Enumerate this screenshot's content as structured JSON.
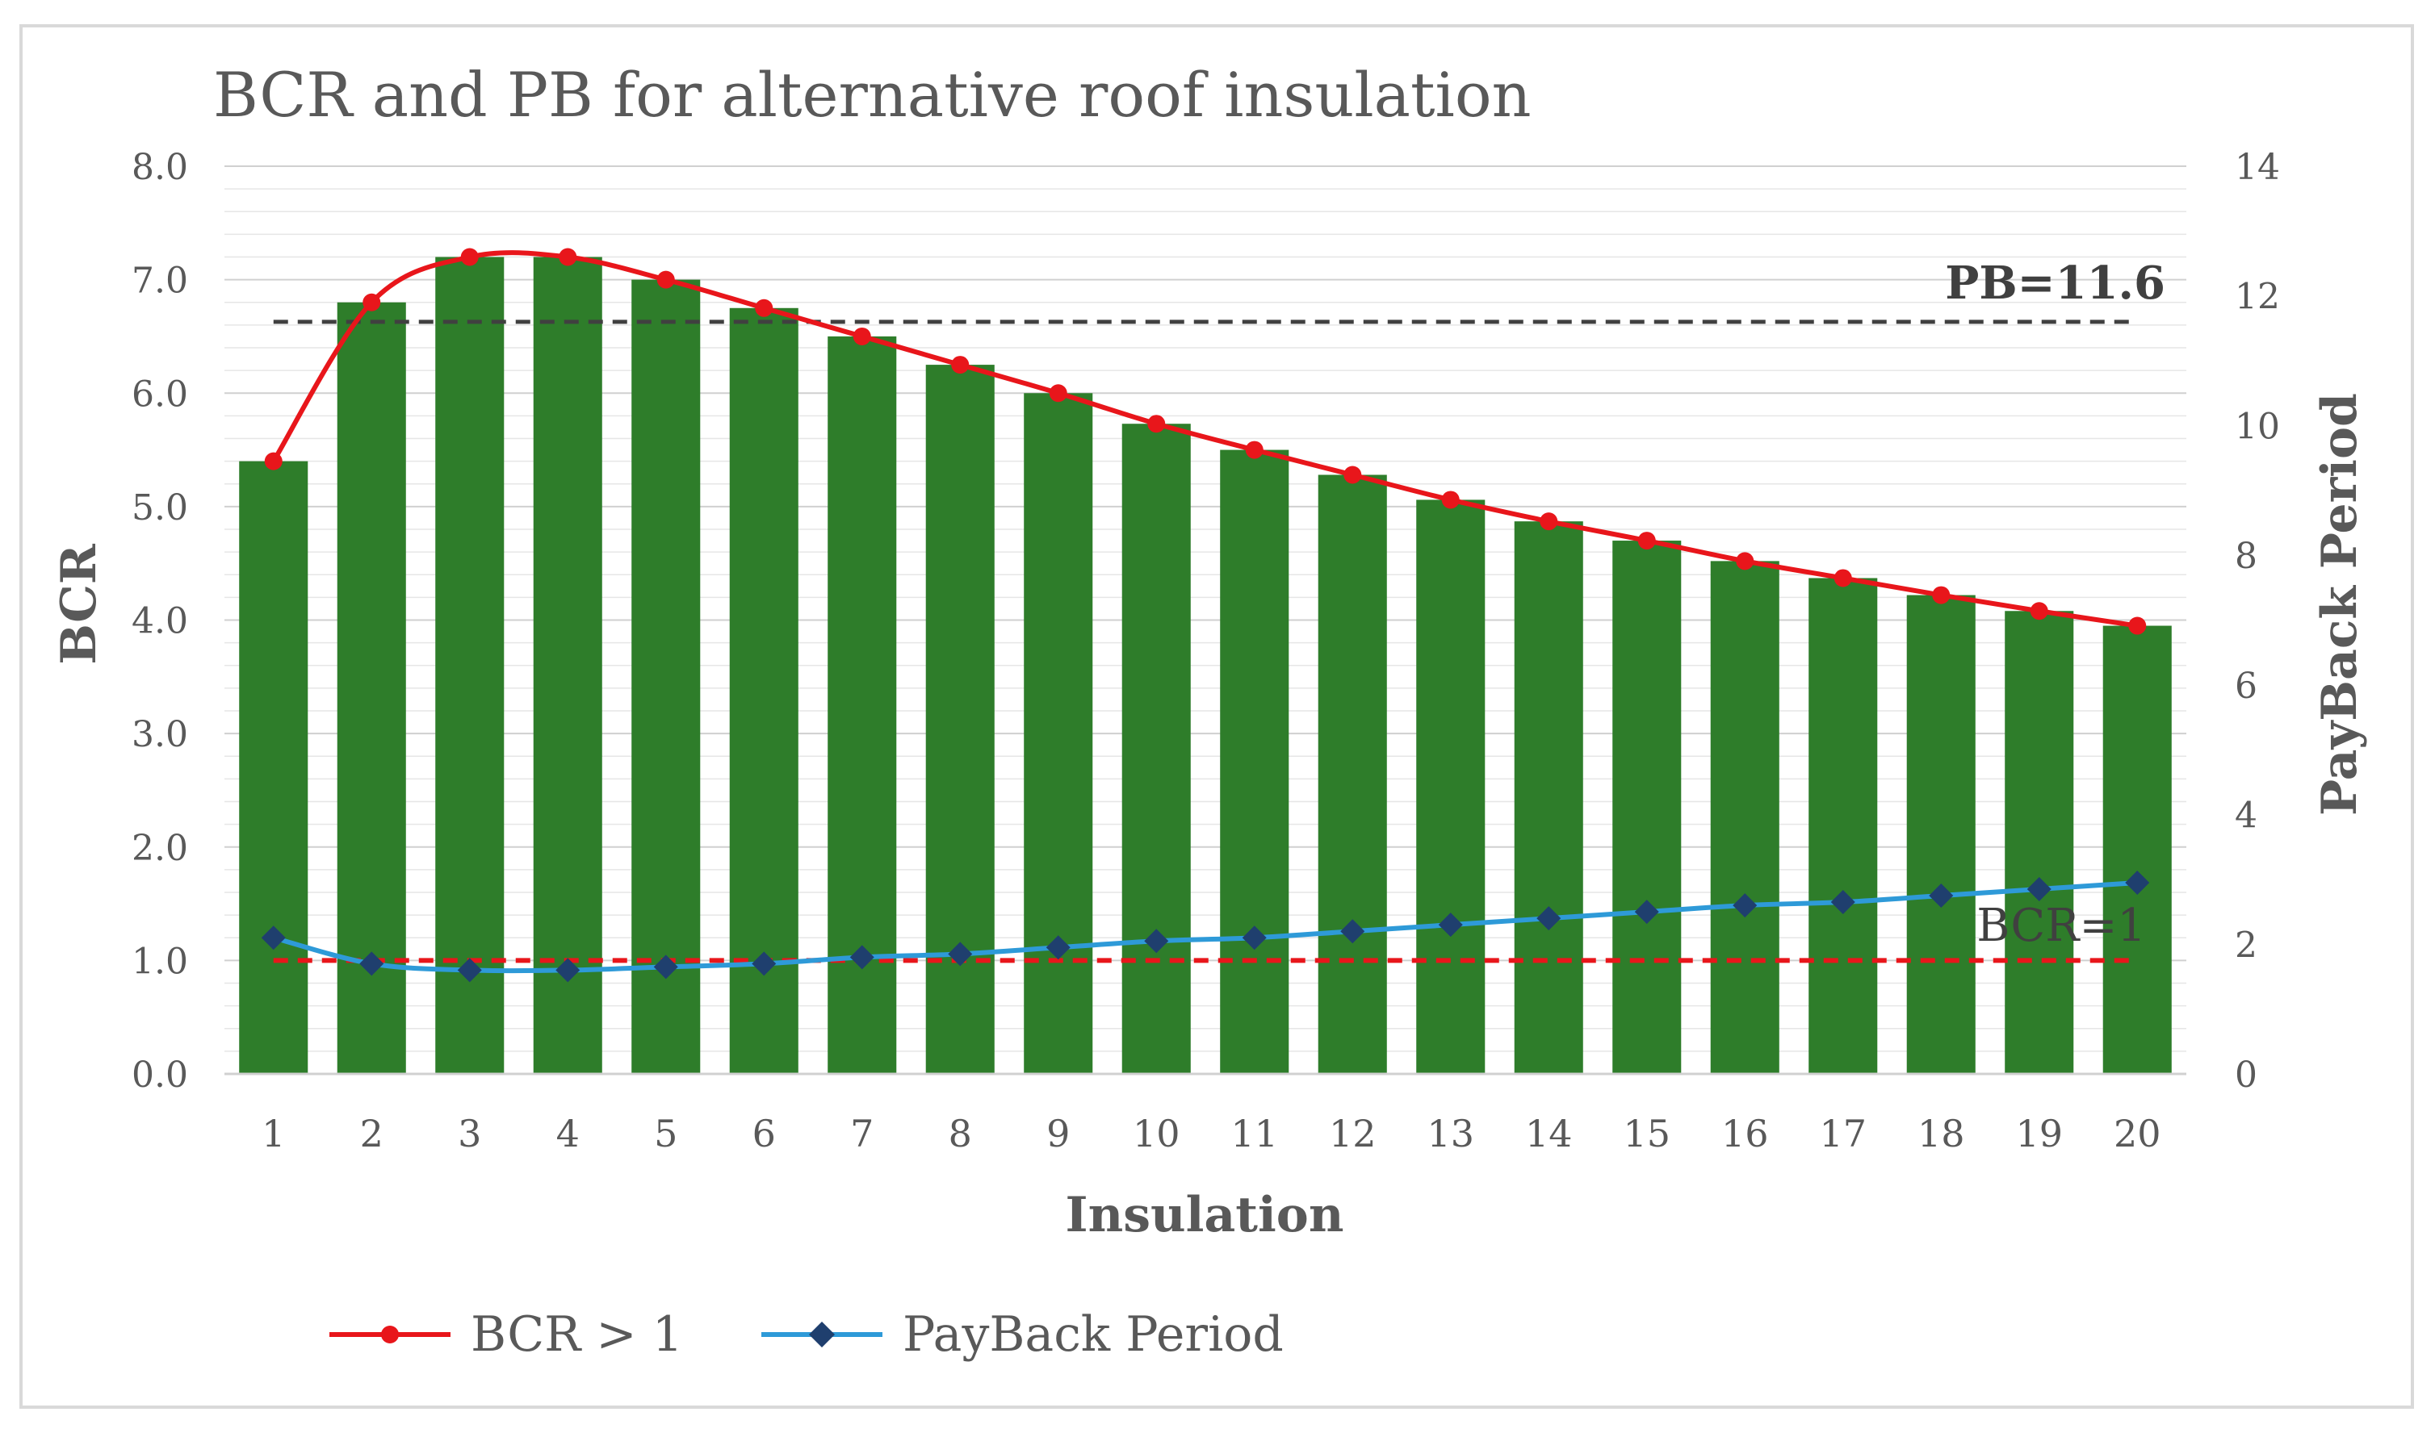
{
  "chart_data": {
    "type": "bar+line",
    "title": "BCR and PB for alternative roof insulation",
    "xlabel": "Insulation",
    "ylabel_left": "BCR",
    "ylabel_right": "PayBack Period",
    "categories": [
      "1",
      "2",
      "3",
      "4",
      "5",
      "6",
      "7",
      "8",
      "9",
      "10",
      "11",
      "12",
      "13",
      "14",
      "15",
      "16",
      "17",
      "18",
      "19",
      "20"
    ],
    "ylim_left": [
      0,
      8
    ],
    "yticks_left": [
      "0.0",
      "1.0",
      "2.0",
      "3.0",
      "4.0",
      "5.0",
      "6.0",
      "7.0",
      "8.0"
    ],
    "ylim_right": [
      0,
      14
    ],
    "yticks_right": [
      "0",
      "2",
      "4",
      "6",
      "8",
      "10",
      "12",
      "14"
    ],
    "grid": true,
    "legend_position": "bottom",
    "bars": {
      "axis": "left",
      "color": "#2e7d2a",
      "values": [
        5.4,
        6.8,
        7.2,
        7.2,
        7.0,
        6.75,
        6.5,
        6.25,
        6.0,
        5.73,
        5.5,
        5.28,
        5.06,
        4.87,
        4.7,
        4.52,
        4.37,
        4.22,
        4.08,
        3.95
      ]
    },
    "series": [
      {
        "name": "BCR > 1",
        "axis": "left",
        "color": "#e8161b",
        "marker": "circle",
        "values": [
          5.4,
          6.8,
          7.2,
          7.2,
          7.0,
          6.75,
          6.5,
          6.25,
          6.0,
          5.73,
          5.5,
          5.28,
          5.06,
          4.87,
          4.7,
          4.52,
          4.37,
          4.22,
          4.08,
          3.95
        ]
      },
      {
        "name": "PayBack Period",
        "axis": "right",
        "color": "#2e9ad8",
        "marker_color": "#1f3f6e",
        "marker": "diamond",
        "values": [
          2.1,
          1.7,
          1.6,
          1.6,
          1.65,
          1.7,
          1.8,
          1.85,
          1.95,
          2.05,
          2.1,
          2.2,
          2.3,
          2.4,
          2.5,
          2.6,
          2.65,
          2.75,
          2.85,
          2.95
        ]
      }
    ],
    "reference_lines": [
      {
        "label": "PB=11.6",
        "axis": "right",
        "value": 11.6,
        "color": "#404040",
        "style": "dashed"
      },
      {
        "label": "BCR=1",
        "axis": "left",
        "value": 1.0,
        "color": "#e8161b",
        "style": "dashed"
      }
    ]
  }
}
